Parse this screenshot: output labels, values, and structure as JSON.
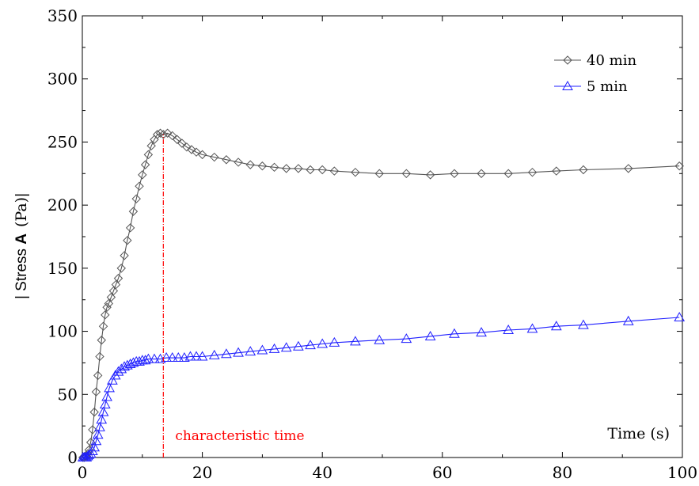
{
  "chart_data": {
    "type": "line",
    "xlabel": "Time",
    "xunit": "(s)",
    "ylabel_prefix": "| Stress ",
    "ylabel_symbol": "A",
    "ylabel_unit": "(Pa)",
    "ylabel_suffix": "|",
    "xlim": [
      0,
      100
    ],
    "ylim": [
      0,
      350
    ],
    "xticks": [
      0,
      20,
      40,
      60,
      80,
      100
    ],
    "yticks": [
      0,
      50,
      100,
      150,
      200,
      250,
      300,
      350
    ],
    "grid": false,
    "legend_position": "top-right",
    "characteristic_time": {
      "x": 13.5,
      "label": "characteristic time",
      "color": "#ff0000"
    },
    "series": [
      {
        "name": "40 min",
        "marker": "diamond",
        "color": "#555555",
        "x": [
          0.1,
          0.3,
          0.5,
          0.7,
          0.9,
          1.1,
          1.4,
          1.7,
          2.0,
          2.3,
          2.6,
          2.9,
          3.2,
          3.5,
          3.8,
          4.1,
          4.4,
          4.8,
          5.2,
          5.6,
          6.0,
          6.5,
          7.0,
          7.5,
          8.0,
          8.5,
          9.0,
          9.5,
          10.0,
          10.5,
          11.0,
          11.5,
          12.0,
          12.5,
          13.0,
          13.5,
          14.2,
          15.0,
          15.8,
          16.6,
          17.4,
          18.2,
          19.0,
          20.0,
          22.0,
          24.0,
          26.0,
          28.0,
          30.0,
          32.0,
          34.0,
          36.0,
          38.0,
          40.0,
          42.0,
          45.5,
          49.5,
          54.0,
          58.0,
          62.0,
          66.5,
          71.0,
          75.0,
          79.0,
          83.5,
          91.0,
          99.5
        ],
        "y": [
          0,
          0,
          1,
          1,
          3,
          6,
          12,
          22,
          36,
          52,
          65,
          80,
          93,
          104,
          113,
          119,
          122,
          127,
          132,
          137,
          142,
          150,
          160,
          172,
          182,
          195,
          205,
          215,
          224,
          232,
          240,
          247,
          252,
          256,
          257,
          256,
          257,
          255,
          252,
          249,
          246,
          244,
          242,
          240,
          238,
          236,
          234,
          232,
          231,
          230,
          229,
          229,
          228,
          228,
          227,
          226,
          225,
          225,
          224,
          225,
          225,
          225,
          226,
          227,
          228,
          229,
          231
        ]
      },
      {
        "name": "5 min",
        "marker": "triangle",
        "color": "#1f1fff",
        "x": [
          0.1,
          0.3,
          0.5,
          0.7,
          0.9,
          1.1,
          1.4,
          1.7,
          2.0,
          2.3,
          2.6,
          2.9,
          3.2,
          3.5,
          3.8,
          4.1,
          4.5,
          5.0,
          5.5,
          6.0,
          6.5,
          7.0,
          7.5,
          8.0,
          8.5,
          9.0,
          9.5,
          10.0,
          10.5,
          11.0,
          12.0,
          13.0,
          14.0,
          15.0,
          16.0,
          17.0,
          18.0,
          19.0,
          20.0,
          22.0,
          24.0,
          26.0,
          28.0,
          30.0,
          32.0,
          34.0,
          36.0,
          38.0,
          40.0,
          42.0,
          45.5,
          49.5,
          54.0,
          58.0,
          62.0,
          66.5,
          71.0,
          75.0,
          79.0,
          83.5,
          91.0,
          99.5
        ],
        "y": [
          0,
          0,
          0,
          0,
          1,
          2,
          3,
          5,
          8,
          13,
          18,
          24,
          30,
          36,
          42,
          48,
          55,
          61,
          65,
          68,
          70,
          72,
          73,
          74,
          75,
          76,
          76,
          77,
          77,
          78,
          78,
          78,
          79,
          79,
          79,
          79,
          80,
          80,
          80,
          81,
          82,
          83,
          84,
          85,
          86,
          87,
          88,
          89,
          90,
          91,
          92,
          93,
          94,
          96,
          98,
          99,
          101,
          102,
          104,
          105,
          108,
          111
        ]
      }
    ]
  }
}
